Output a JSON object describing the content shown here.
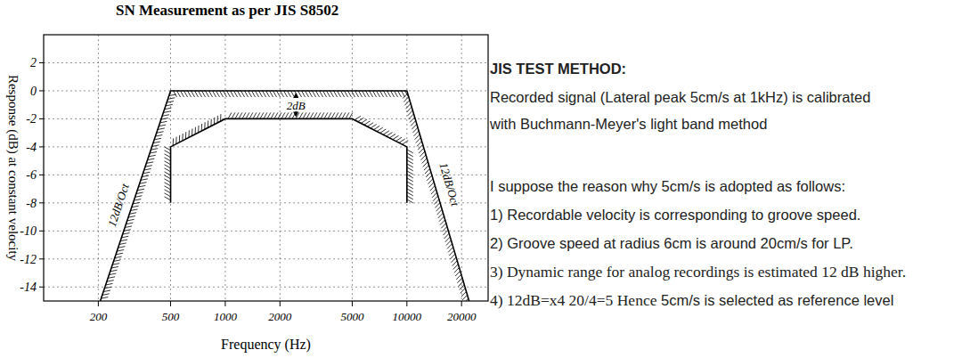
{
  "chart_data": {
    "type": "line",
    "title": "SN Measurement as per JIS S8502",
    "x_label": "Frequency (Hz)",
    "y_label": "Response (dB) at constant velocity",
    "log": "x",
    "grid": true,
    "xlim": [
      100,
      28000
    ],
    "xticks": [
      200,
      500,
      1000,
      2000,
      5000,
      10000,
      20000
    ],
    "ylim": [
      -15,
      4
    ],
    "yticks": [
      2,
      0,
      -2,
      -4,
      -6,
      -8,
      -10,
      -12,
      -14
    ],
    "annotations": [
      "12dB/Oct",
      "2dB",
      "12dB/Oct"
    ],
    "series": [
      {
        "color": "#000000",
        "x": [
          205,
          500,
          10000,
          22000
        ],
        "values": [
          -15,
          0,
          0,
          -15
        ]
      },
      {
        "color": "#000000",
        "x": [
          500,
          500,
          1000,
          5000,
          10000,
          10000
        ],
        "values": [
          -8,
          -4,
          -2,
          -2,
          -4,
          -8
        ]
      }
    ]
  },
  "side_text": {
    "heading": "JIS TEST METHOD:",
    "lines": [
      "Recorded signal (Lateral peak 5cm/s at 1kHz) is calibrated",
      "with Buchmann-Meyer's light band method",
      "I suppose the reason why 5cm/s is adopted as follows:",
      "1) Recordable velocity is corresponding to groove speed.",
      "2) Groove speed at radius 6cm is around 20cm/s for LP.",
      "3) Dynamic range for analog recordings is estimated 12 dB higher.",
      [
        "4) 12dB=x4  20/4=5 Hence",
        "5cm/s is selected as reference level"
      ]
    ]
  }
}
